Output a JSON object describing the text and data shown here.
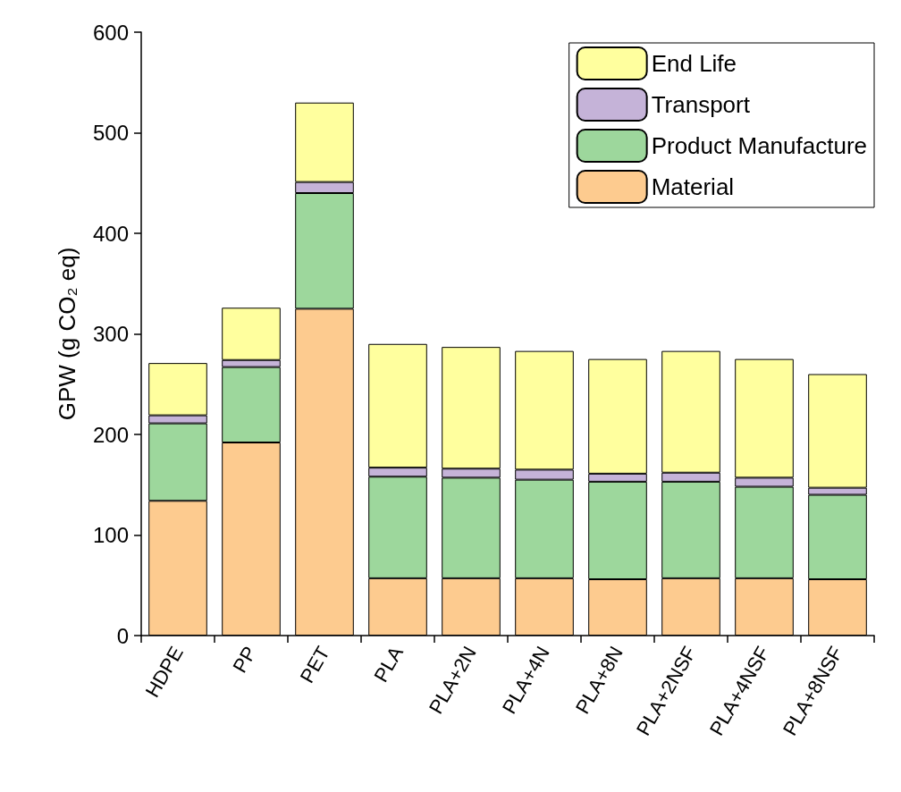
{
  "chart_data": {
    "type": "bar",
    "ylabel": "GPW (g CO₂ eq)",
    "stacked": true,
    "categories": [
      "HDPE",
      "PP",
      "PET",
      "PLA",
      "PLA+2N",
      "PLA+4N",
      "PLA+8N",
      "PLA+2NSF",
      "PLA+4NSF",
      "PLA+8NSF"
    ],
    "series": [
      {
        "name": "Material",
        "color": "#fdcb8f",
        "values": [
          134,
          192,
          325,
          57,
          57,
          57,
          56,
          57,
          57,
          56
        ]
      },
      {
        "name": "Product Manufacture",
        "color": "#9dd79c",
        "values": [
          77,
          75,
          115,
          101,
          100,
          98,
          97,
          96,
          91,
          84
        ]
      },
      {
        "name": "Transport",
        "color": "#c5b3d8",
        "values": [
          8,
          7,
          11,
          9,
          9,
          10,
          8,
          9,
          9,
          7
        ]
      },
      {
        "name": "End Life",
        "color": "#ffff9e",
        "values": [
          52,
          52,
          79,
          123,
          121,
          118,
          114,
          121,
          118,
          113
        ]
      }
    ],
    "ylim": [
      0,
      600
    ],
    "yticks": [
      0,
      100,
      200,
      300,
      400,
      500,
      600
    ],
    "grid": false,
    "legend": "top right"
  }
}
